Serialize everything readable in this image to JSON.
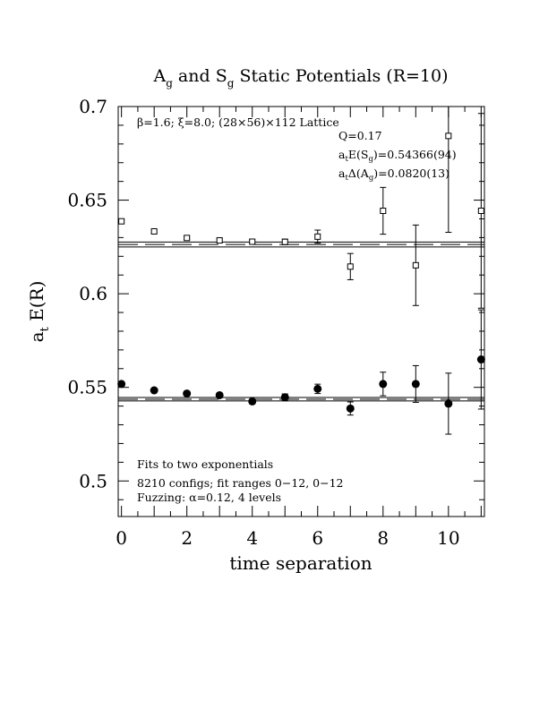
{
  "chart_data": {
    "type": "scatter",
    "title": {
      "pre": "A",
      "pre_sub": "g",
      "mid": " and S",
      "mid_sub": "g",
      "post": " Static Potentials (R=10)"
    },
    "ylabel": {
      "main": "a",
      "sub": "t",
      "rest": " E(R)"
    },
    "xlabel": "time separation",
    "xlim": [
      -0.1,
      11.1
    ],
    "ylim": [
      0.481,
      0.7
    ],
    "x_ticks": [
      0,
      2,
      4,
      6,
      8,
      10
    ],
    "y_ticks": [
      0.5,
      0.55,
      0.6,
      0.65,
      0.7
    ],
    "y_tick_labels": [
      "0.5",
      "0.55",
      "0.6",
      "0.65",
      "0.7"
    ],
    "grid": false,
    "annotations": {
      "lattice": "β=1.6; ξ=8.0; (28×56)×112 Lattice",
      "q": "Q=0.17",
      "esg": {
        "pre": "a",
        "sub": "t",
        "mid": "E(S",
        "sub2": "g",
        "post": ")=0.54366(94)"
      },
      "dag": {
        "pre": "a",
        "sub": "t",
        "mid": "Δ(A",
        "sub2": "g",
        "post": ")=0.0820(13)"
      },
      "fits": "Fits to two exponentials",
      "configs": "8210 configs; fit ranges 0−12, 0−12",
      "fuzzing": "Fuzzing: α=0.12, 4 levels"
    },
    "series": [
      {
        "marker": "open-square",
        "points": [
          {
            "x": 0,
            "y": 0.6387,
            "err": 0.0008
          },
          {
            "x": 1,
            "y": 0.6333,
            "err": 0.0008
          },
          {
            "x": 2,
            "y": 0.6298,
            "err": 0.0008
          },
          {
            "x": 3,
            "y": 0.6285,
            "err": 0.0008
          },
          {
            "x": 4,
            "y": 0.6278,
            "err": 0.0009
          },
          {
            "x": 5,
            "y": 0.6277,
            "err": 0.0015
          },
          {
            "x": 6,
            "y": 0.6305,
            "err": 0.0035
          },
          {
            "x": 7,
            "y": 0.6145,
            "err": 0.007
          },
          {
            "x": 8,
            "y": 0.6443,
            "err": 0.0125
          },
          {
            "x": 9,
            "y": 0.6152,
            "err": 0.0215
          },
          {
            "x": 10,
            "y": 0.6843,
            "err": 0.0515
          },
          {
            "x": 11,
            "y": 0.6443,
            "err": 0.052
          }
        ]
      },
      {
        "marker": "filled-circle",
        "points": [
          {
            "x": 0,
            "y": 0.5518,
            "err": 0.0006
          },
          {
            "x": 1,
            "y": 0.5484,
            "err": 0.0007
          },
          {
            "x": 2,
            "y": 0.5467,
            "err": 0.0008
          },
          {
            "x": 3,
            "y": 0.5458,
            "err": 0.0009
          },
          {
            "x": 4,
            "y": 0.5425,
            "err": 0.0012
          },
          {
            "x": 5,
            "y": 0.5447,
            "err": 0.0018
          },
          {
            "x": 6,
            "y": 0.5492,
            "err": 0.0025
          },
          {
            "x": 7,
            "y": 0.5387,
            "err": 0.0035
          },
          {
            "x": 8,
            "y": 0.5518,
            "err": 0.0063
          },
          {
            "x": 9,
            "y": 0.5518,
            "err": 0.0098
          },
          {
            "x": 10,
            "y": 0.5413,
            "err": 0.0163
          },
          {
            "x": 11,
            "y": 0.5649,
            "err": 0.0265
          }
        ]
      }
    ],
    "fit_bands": [
      {
        "value": 0.6263,
        "err": 0.0013
      },
      {
        "value": 0.54366,
        "err": 0.00094
      }
    ]
  }
}
